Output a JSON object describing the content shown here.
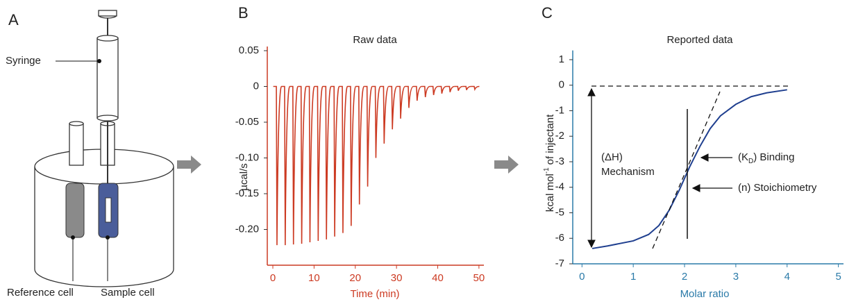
{
  "panel_labels": [
    "A",
    "B",
    "C"
  ],
  "diagram": {
    "syringe": "Syringe",
    "reference_cell": "Reference cell",
    "sample_cell": "Sample cell"
  },
  "chart_data": [
    {
      "type": "peaks",
      "title": "Raw data",
      "x_label": "Time (min)",
      "y_label": "µcal/s",
      "x": [
        1,
        3,
        5,
        7,
        9,
        11,
        13,
        15,
        17,
        19,
        21,
        23,
        25,
        27,
        29,
        31,
        33,
        35,
        37,
        39,
        41,
        43,
        45,
        47,
        49
      ],
      "values": [
        -0.222,
        -0.222,
        -0.221,
        -0.22,
        -0.218,
        -0.216,
        -0.214,
        -0.21,
        -0.205,
        -0.195,
        -0.165,
        -0.14,
        -0.1,
        -0.08,
        -0.06,
        -0.045,
        -0.03,
        -0.02,
        -0.015,
        -0.012,
        -0.01,
        -0.008,
        -0.006,
        -0.005,
        -0.004
      ],
      "color": "#cc3a22",
      "axis_color": "#cc3a22",
      "xlim": [
        -1.35,
        51.2
      ],
      "ylim": [
        -0.25,
        0.05
      ],
      "xticks": [
        0,
        10,
        20,
        30,
        40,
        50
      ],
      "yticks": [
        0.05,
        0,
        -0.05,
        {
          "value": -0.1,
          "label": "-0.10"
        },
        -0.15,
        {
          "value": -0.2,
          "label": "-0.20"
        }
      ]
    },
    {
      "type": "line",
      "title": "Reported data",
      "x_label": "Molar ratio",
      "y_label": {
        "text": "kcal mol",
        "sup": "-1",
        "rest": "of injectant"
      },
      "annotations": {
        "delta_h": "(ΔH)",
        "mechanism": "Mechanism",
        "binding": {
          "open": "(K",
          "sub": "D",
          "rest": ") Binding"
        },
        "stoichiometry": "(n) Stoichiometry"
      },
      "x": [
        0.2,
        0.5,
        1,
        1.3,
        1.5,
        1.7,
        1.9,
        2.1,
        2.3,
        2.5,
        2.7,
        3,
        3.3,
        3.6,
        4
      ],
      "values": [
        -6.4,
        -6.3,
        -6.1,
        -5.85,
        -5.5,
        -4.9,
        -4.1,
        -3.2,
        -2.4,
        -1.7,
        -1.2,
        -0.75,
        -0.45,
        -0.3,
        -0.18
      ],
      "color": "#1f3f8f",
      "axis_color": "#2a7aa8",
      "xlim": [
        -0.18,
        5.1
      ],
      "ylim": [
        -7,
        1.2
      ],
      "xticks": [
        0,
        1,
        2,
        3,
        4,
        5
      ],
      "yticks": [
        1,
        0,
        -1,
        -2,
        -3,
        -4,
        -5,
        -6,
        -7
      ]
    }
  ]
}
